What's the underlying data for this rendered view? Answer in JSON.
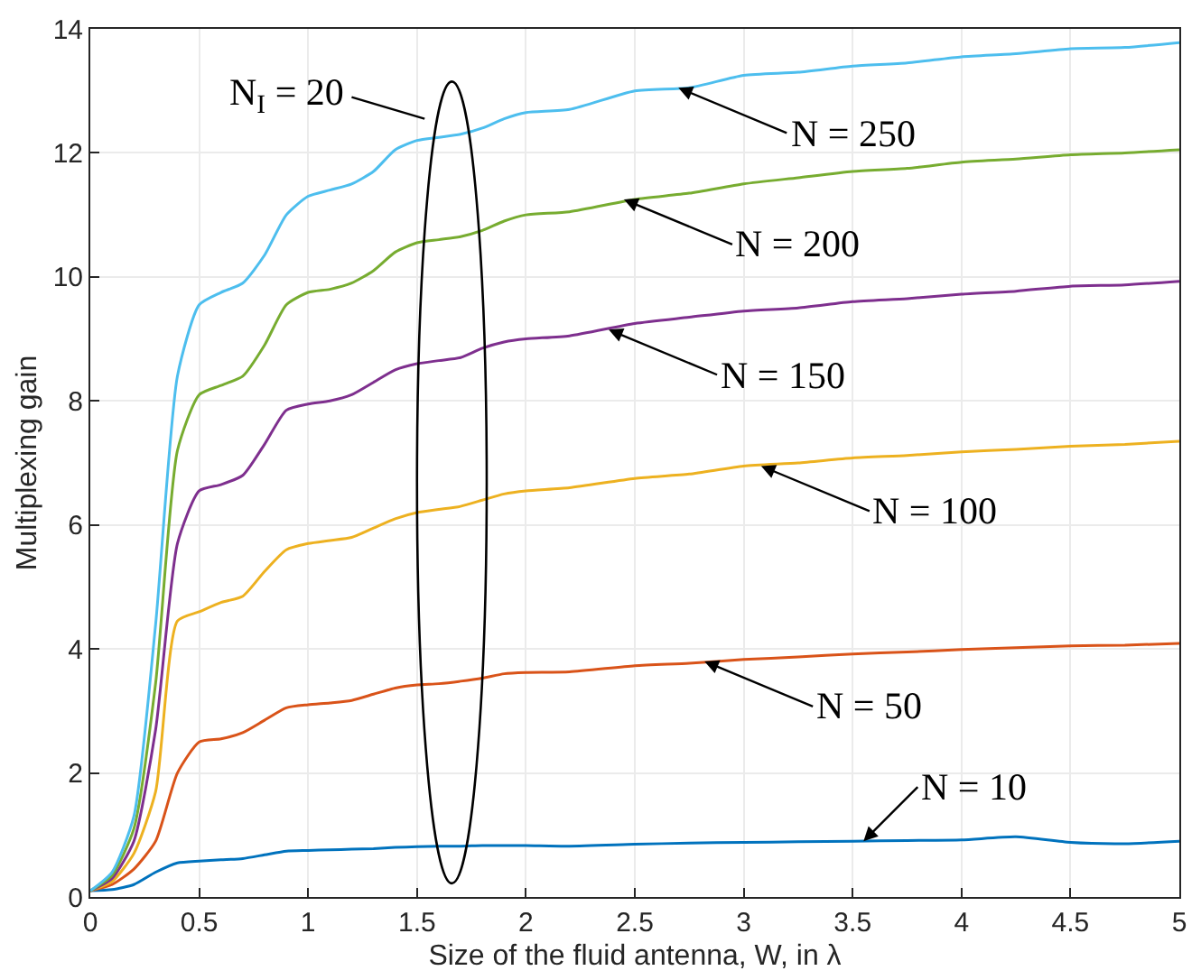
{
  "chart_data": {
    "type": "line",
    "xlabel": "Size of the fluid antenna, W, in λ",
    "ylabel": "Multiplexing gain",
    "x": [
      0,
      0.1,
      0.2,
      0.3,
      0.4,
      0.5,
      0.6,
      0.7,
      0.8,
      0.9,
      1.0,
      1.1,
      1.2,
      1.3,
      1.4,
      1.5,
      1.6,
      1.7,
      1.8,
      1.9,
      2.0,
      2.2,
      2.5,
      2.75,
      3.0,
      3.25,
      3.5,
      3.75,
      4.0,
      4.25,
      4.5,
      4.75,
      5.0
    ],
    "series": [
      {
        "color": "#0072bd",
        "values": [
          0.1,
          0.12,
          0.2,
          0.4,
          0.55,
          0.58,
          0.6,
          0.62,
          0.68,
          0.74,
          0.75,
          0.76,
          0.77,
          0.78,
          0.8,
          0.81,
          0.82,
          0.82,
          0.83,
          0.83,
          0.83,
          0.82,
          0.85,
          0.87,
          0.88,
          0.89,
          0.9,
          0.91,
          0.92,
          0.97,
          0.88,
          0.86,
          0.9
        ]
      },
      {
        "color": "#d95319",
        "values": [
          0.1,
          0.2,
          0.45,
          0.9,
          2.0,
          2.5,
          2.55,
          2.65,
          2.85,
          3.05,
          3.1,
          3.13,
          3.17,
          3.27,
          3.37,
          3.42,
          3.44,
          3.48,
          3.53,
          3.6,
          3.62,
          3.63,
          3.73,
          3.77,
          3.83,
          3.87,
          3.92,
          3.95,
          3.99,
          4.02,
          4.05,
          4.06,
          4.09
        ]
      },
      {
        "color": "#edb120",
        "values": [
          0.1,
          0.25,
          0.7,
          1.7,
          4.45,
          4.6,
          4.75,
          4.85,
          5.25,
          5.6,
          5.7,
          5.75,
          5.8,
          5.95,
          6.1,
          6.2,
          6.25,
          6.3,
          6.4,
          6.5,
          6.55,
          6.6,
          6.75,
          6.82,
          6.95,
          7.0,
          7.08,
          7.12,
          7.18,
          7.22,
          7.27,
          7.3,
          7.35
        ]
      },
      {
        "color": "#7e2f8e",
        "values": [
          0.1,
          0.3,
          0.9,
          2.7,
          5.7,
          6.55,
          6.65,
          6.8,
          7.3,
          7.85,
          7.95,
          8.0,
          8.1,
          8.3,
          8.5,
          8.6,
          8.65,
          8.7,
          8.85,
          8.95,
          9.0,
          9.05,
          9.25,
          9.35,
          9.45,
          9.5,
          9.6,
          9.65,
          9.72,
          9.77,
          9.85,
          9.87,
          9.93
        ]
      },
      {
        "color": "#77ac30",
        "values": [
          0.1,
          0.35,
          1.1,
          3.45,
          7.2,
          8.1,
          8.25,
          8.4,
          8.9,
          9.55,
          9.75,
          9.8,
          9.9,
          10.1,
          10.4,
          10.55,
          10.6,
          10.65,
          10.75,
          10.9,
          11.0,
          11.05,
          11.25,
          11.35,
          11.5,
          11.6,
          11.7,
          11.75,
          11.85,
          11.9,
          11.97,
          12.0,
          12.05
        ]
      },
      {
        "color": "#4dbeee",
        "values": [
          0.1,
          0.4,
          1.3,
          4.4,
          8.4,
          9.55,
          9.75,
          9.9,
          10.35,
          11.0,
          11.3,
          11.4,
          11.5,
          11.7,
          12.05,
          12.2,
          12.25,
          12.3,
          12.4,
          12.55,
          12.65,
          12.7,
          13.0,
          13.05,
          13.25,
          13.3,
          13.4,
          13.45,
          13.55,
          13.6,
          13.68,
          13.7,
          13.78
        ]
      }
    ],
    "annotations": [
      {
        "text": "N = 250",
        "x": 2.7,
        "y": 13.05
      },
      {
        "text": "N = 200",
        "x": 2.45,
        "y": 11.25
      },
      {
        "text": "N = 150",
        "x": 2.38,
        "y": 9.15
      },
      {
        "text": "N = 100",
        "x": 3.08,
        "y": 6.95
      },
      {
        "text": "N = 50",
        "x": 2.82,
        "y": 3.8
      },
      {
        "text": "N = 10",
        "x": 3.55,
        "y": 0.9
      },
      "N$_{I}$ = 20"
    ],
    "xlim": [
      0,
      5
    ],
    "xticks": [
      0,
      0.5,
      1,
      1.5,
      2,
      2.5,
      3,
      3.5,
      4,
      4.5,
      5
    ],
    "ylim": [
      0,
      14
    ],
    "yticks": [
      0,
      2,
      4,
      6,
      8,
      10,
      12,
      14
    ],
    "grid": true,
    "marker": "none",
    "line_style": "solid"
  }
}
